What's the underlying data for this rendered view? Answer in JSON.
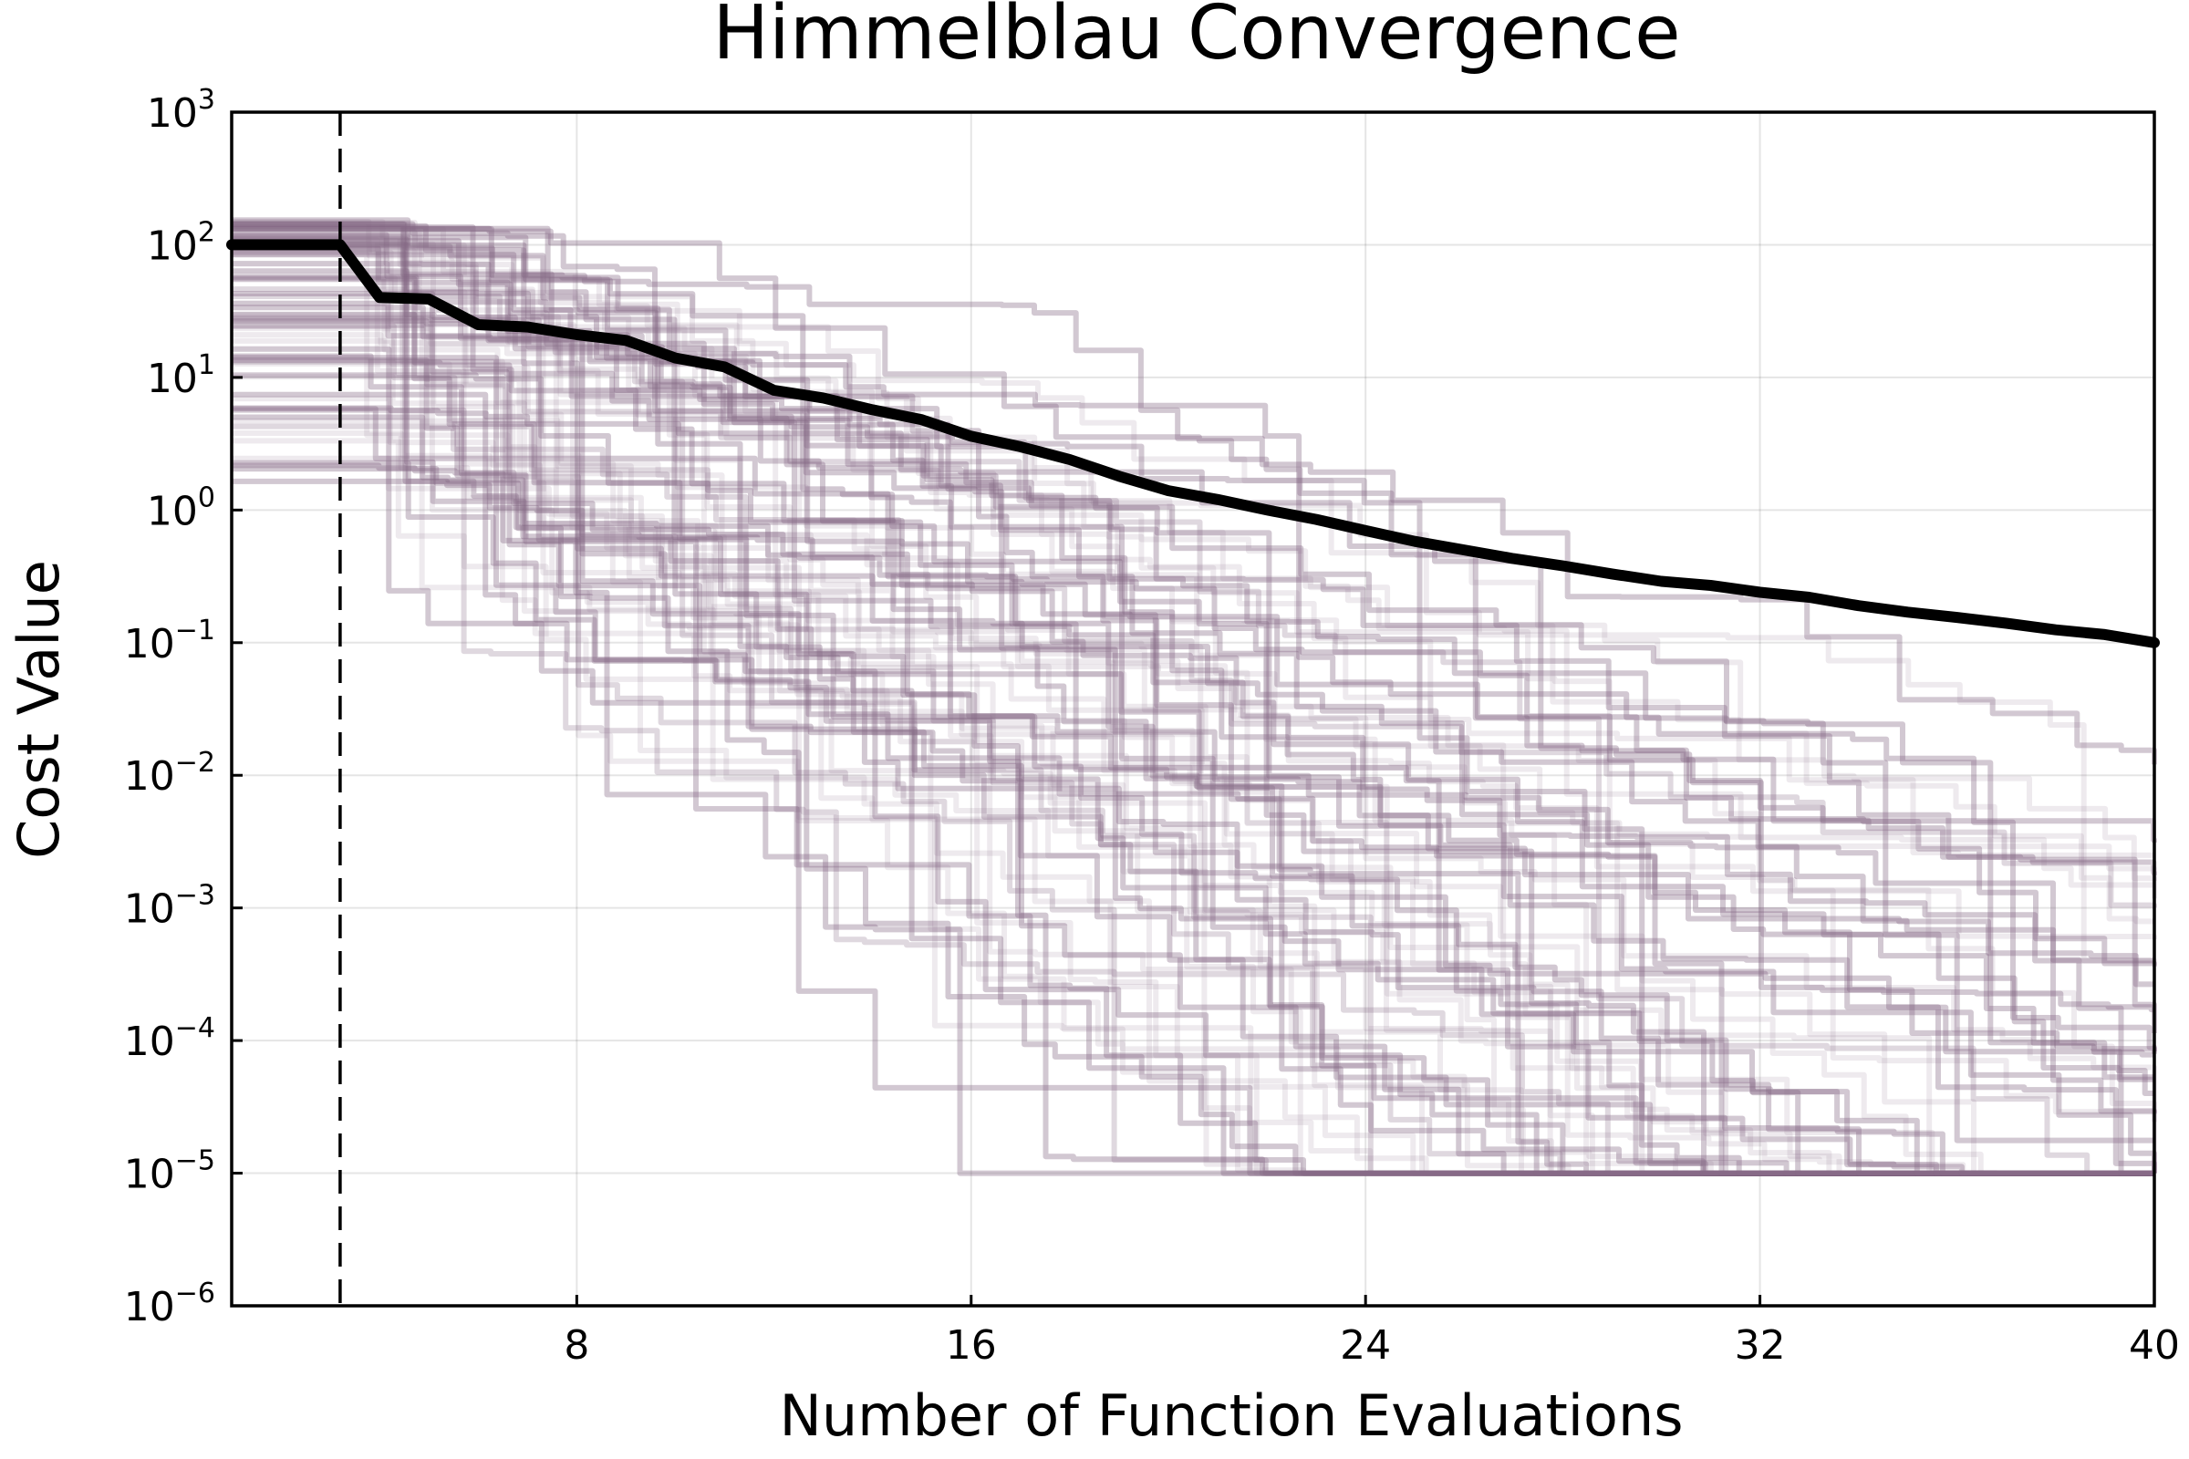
{
  "chart_data": {
    "type": "line",
    "title": "Himmelblau Convergence",
    "xlabel": "Number of Function Evaluations",
    "ylabel": "Cost Value",
    "y_scale": "log10",
    "xlim": [
      1,
      40
    ],
    "ylim": [
      1e-06,
      1000
    ],
    "x_ticks": [
      8,
      16,
      24,
      32,
      40
    ],
    "x_tick_labels": [
      "8",
      "16",
      "24",
      "32",
      "40"
    ],
    "y_ticks": [
      {
        "value": 1e-06,
        "base": "10",
        "exp": "−6"
      },
      {
        "value": 1e-05,
        "base": "10",
        "exp": "−5"
      },
      {
        "value": 0.0001,
        "base": "10",
        "exp": "−4"
      },
      {
        "value": 0.001,
        "base": "10",
        "exp": "−3"
      },
      {
        "value": 0.01,
        "base": "10",
        "exp": "−2"
      },
      {
        "value": 0.1,
        "base": "10",
        "exp": "−1"
      },
      {
        "value": 1,
        "base": "10",
        "exp": "0"
      },
      {
        "value": 10,
        "base": "10",
        "exp": "1"
      },
      {
        "value": 100,
        "base": "10",
        "exp": "2"
      },
      {
        "value": 1000,
        "base": "10",
        "exp": "3"
      }
    ],
    "grid": true,
    "legend": "none",
    "vertical_marker": {
      "x": 3.2,
      "style": "dashed",
      "color": "#000000"
    },
    "bundle_color": "#866b89",
    "bundle_opacity": 0.14,
    "median_color": "#000000",
    "median": {
      "x": [
        1,
        2,
        3,
        3.2,
        4,
        5,
        6,
        7,
        8,
        9,
        10,
        11,
        12,
        13,
        14,
        15,
        16,
        17,
        18,
        19,
        20,
        21,
        22,
        23,
        24,
        25,
        26,
        27,
        28,
        29,
        30,
        31,
        32,
        33,
        34,
        35,
        36,
        37,
        38,
        39,
        40
      ],
      "y": [
        100,
        100,
        100,
        100,
        40,
        39,
        25,
        24,
        21,
        19,
        14,
        12,
        8,
        7,
        5.7,
        4.8,
        3.6,
        3.0,
        2.4,
        1.8,
        1.4,
        1.2,
        1.0,
        0.85,
        0.7,
        0.58,
        0.5,
        0.43,
        0.38,
        0.33,
        0.29,
        0.27,
        0.24,
        0.22,
        0.19,
        0.17,
        0.155,
        0.14,
        0.125,
        0.115,
        0.1
      ]
    }
  }
}
